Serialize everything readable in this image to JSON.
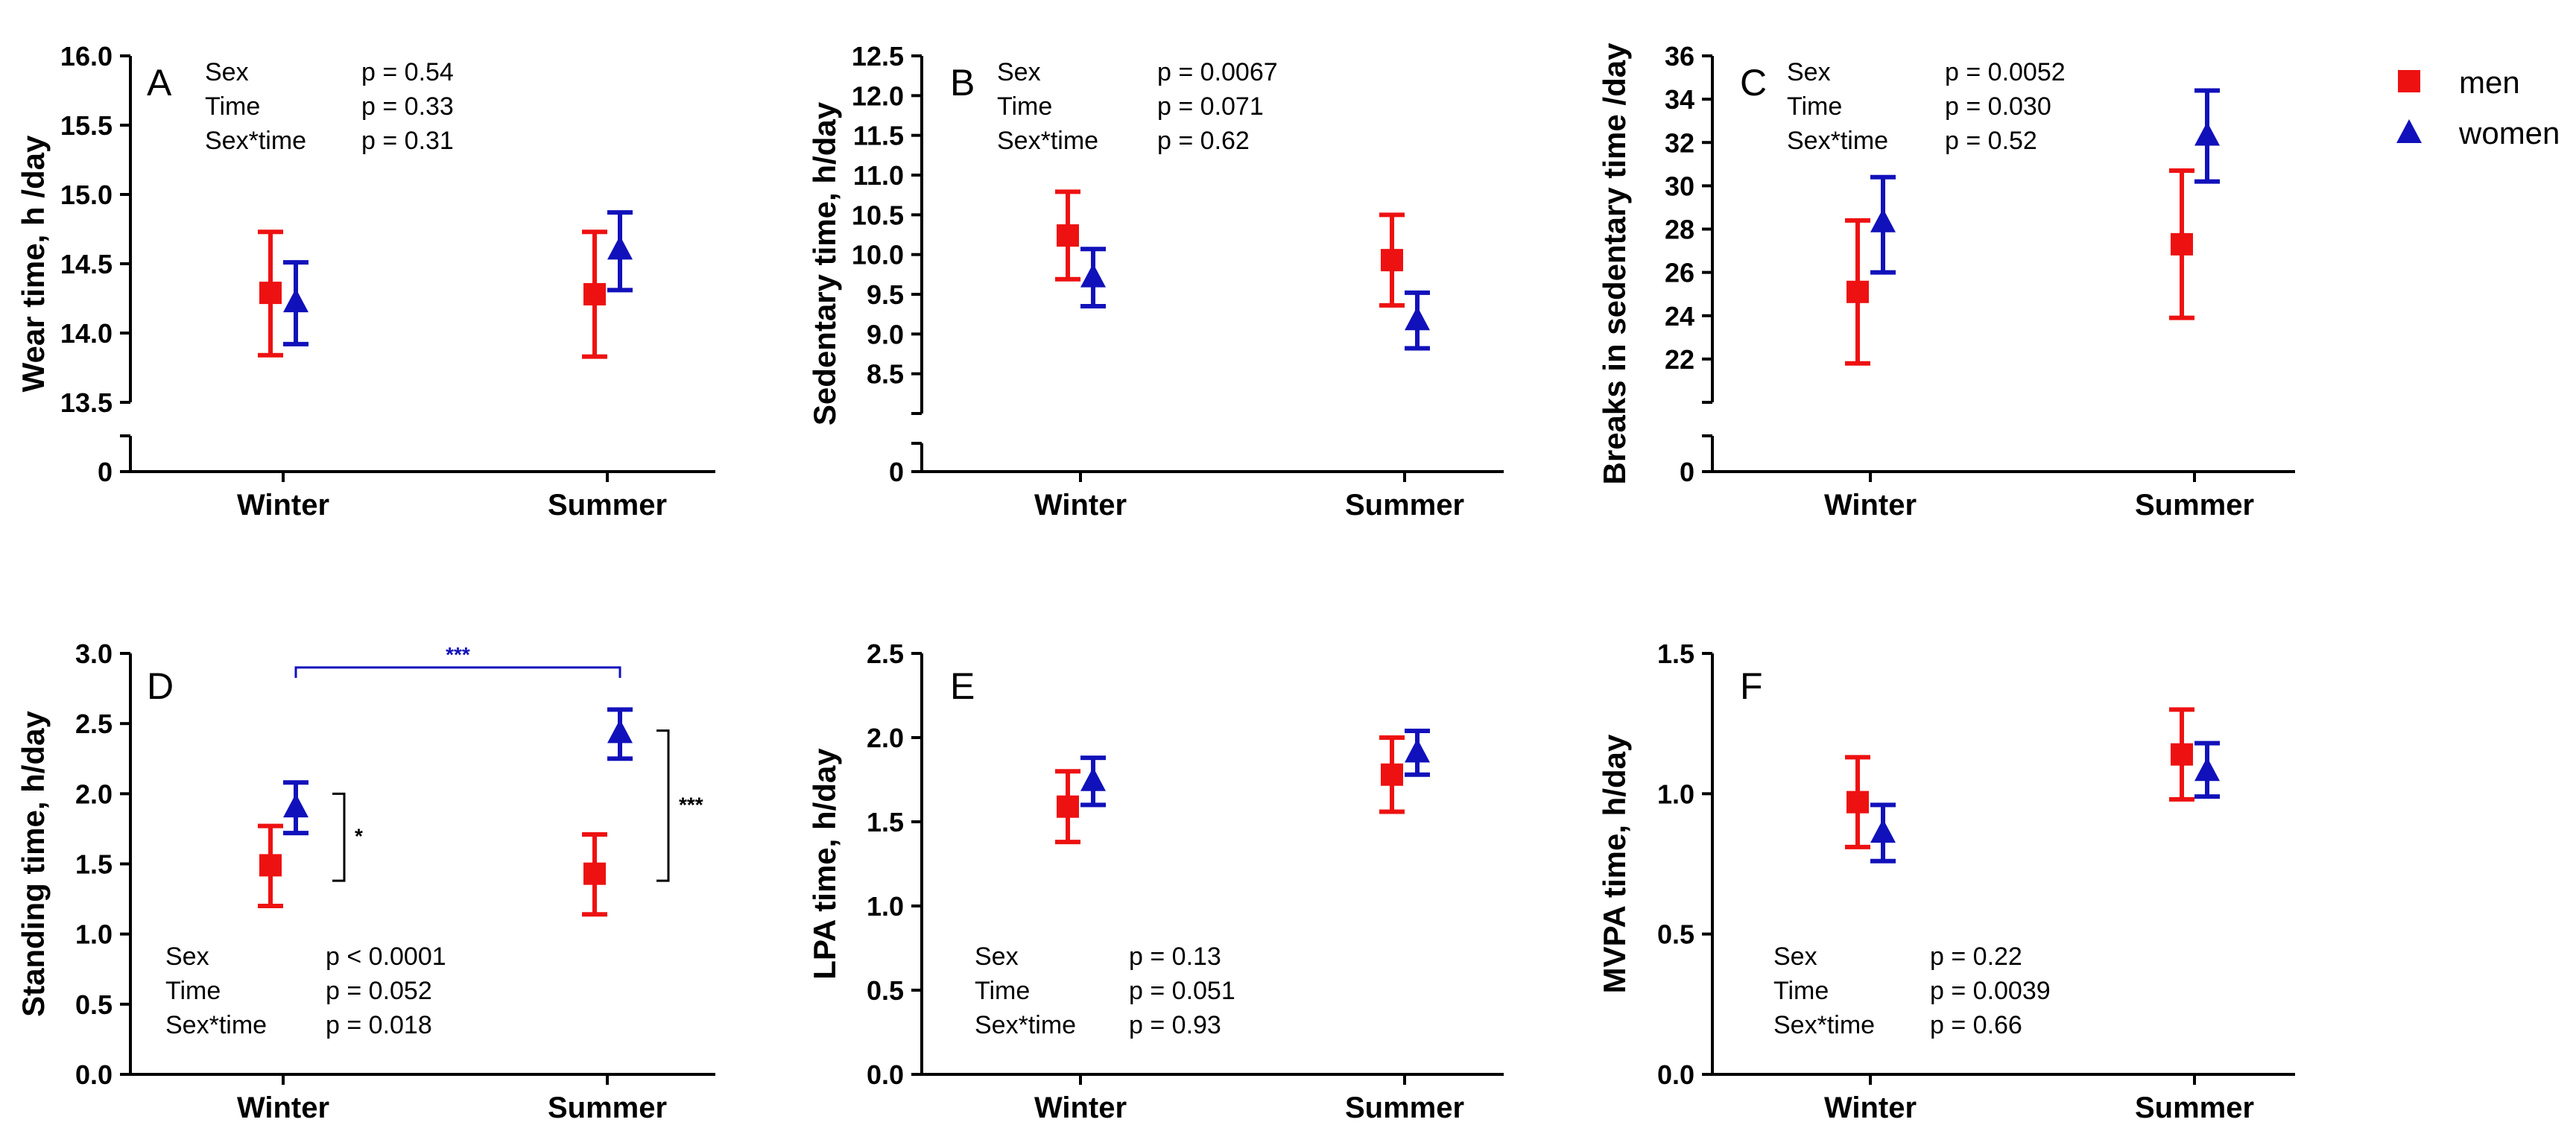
{
  "legend": {
    "items": [
      {
        "name": "men",
        "color": "#ee1111",
        "marker": "square"
      },
      {
        "name": "women",
        "color": "#1111bb",
        "marker": "triangle"
      }
    ]
  },
  "chart_data": [
    {
      "type": "scatter",
      "label": "A",
      "ylabel": "Wear time, h /day",
      "categories": [
        "Winter",
        "Summer"
      ],
      "yticks": [
        "13.5",
        "14.0",
        "14.5",
        "15.0",
        "15.5",
        "16.0"
      ],
      "ytick_values": [
        13.5,
        14.0,
        14.5,
        15.0,
        15.5,
        16.0
      ],
      "ylim": [
        13.5,
        16.0
      ],
      "broken_axis": true,
      "zero_label": "0",
      "series": [
        {
          "name": "men",
          "values": [
            14.29,
            14.28
          ],
          "lower": [
            13.84,
            13.83
          ],
          "upper": [
            14.73,
            14.73
          ]
        },
        {
          "name": "women",
          "values": [
            14.22,
            14.6
          ],
          "lower": [
            13.92,
            14.31
          ],
          "upper": [
            14.51,
            14.87
          ]
        }
      ],
      "stats": [
        {
          "term": "Sex",
          "p": "p = 0.54"
        },
        {
          "term": "Time",
          "p": "p = 0.33"
        },
        {
          "term": "Sex*time",
          "p": "p = 0.31"
        }
      ],
      "stats_position": "top"
    },
    {
      "type": "scatter",
      "label": "B",
      "ylabel": "Sedentary time, h/day",
      "categories": [
        "Winter",
        "Summer"
      ],
      "yticks": [
        "8.5",
        "9.0",
        "9.5",
        "10.0",
        "10.5",
        "11.0",
        "11.5",
        "12.0",
        "12.5"
      ],
      "ytick_values": [
        8.5,
        9.0,
        9.5,
        10.0,
        10.5,
        11.0,
        11.5,
        12.0,
        12.5
      ],
      "ylim": [
        8.0,
        12.5
      ],
      "broken_axis": true,
      "zero_label": "0",
      "series": [
        {
          "name": "men",
          "values": [
            10.24,
            9.93
          ],
          "lower": [
            9.69,
            9.36
          ],
          "upper": [
            10.79,
            10.5
          ]
        },
        {
          "name": "women",
          "values": [
            9.71,
            9.17
          ],
          "lower": [
            9.35,
            8.82
          ],
          "upper": [
            10.07,
            9.52
          ]
        }
      ],
      "stats": [
        {
          "term": "Sex",
          "p": "p = 0.0067"
        },
        {
          "term": "Time",
          "p": "p = 0.071"
        },
        {
          "term": "Sex*time",
          "p": "p = 0.62"
        }
      ],
      "stats_position": "top"
    },
    {
      "type": "scatter",
      "label": "C",
      "ylabel": "Breaks in sedentary  time /day",
      "categories": [
        "Winter",
        "Summer"
      ],
      "yticks": [
        "22",
        "24",
        "26",
        "28",
        "30",
        "32",
        "34",
        "36"
      ],
      "ytick_values": [
        22,
        24,
        26,
        28,
        30,
        32,
        34,
        36
      ],
      "ylim": [
        20,
        36
      ],
      "broken_axis": true,
      "zero_label": "0",
      "series": [
        {
          "name": "men",
          "values": [
            25.1,
            27.3
          ],
          "lower": [
            21.8,
            23.9
          ],
          "upper": [
            28.4,
            30.7
          ]
        },
        {
          "name": "women",
          "values": [
            28.3,
            32.3
          ],
          "lower": [
            26.0,
            30.2
          ],
          "upper": [
            30.4,
            34.4
          ]
        }
      ],
      "stats": [
        {
          "term": "Sex",
          "p": "p = 0.0052"
        },
        {
          "term": "Time",
          "p": "p = 0.030"
        },
        {
          "term": "Sex*time",
          "p": "p = 0.52"
        }
      ],
      "stats_position": "top"
    },
    {
      "type": "scatter",
      "label": "D",
      "ylabel": "Standing time, h/day",
      "categories": [
        "Winter",
        "Summer"
      ],
      "yticks": [
        "0.0",
        "0.5",
        "1.0",
        "1.5",
        "2.0",
        "2.5",
        "3.0"
      ],
      "ytick_values": [
        0,
        0.5,
        1.0,
        1.5,
        2.0,
        2.5,
        3.0
      ],
      "ylim": [
        0,
        3.0
      ],
      "broken_axis": false,
      "series": [
        {
          "name": "men",
          "values": [
            1.49,
            1.43
          ],
          "lower": [
            1.2,
            1.14
          ],
          "upper": [
            1.77,
            1.71
          ]
        },
        {
          "name": "women",
          "values": [
            1.9,
            2.43
          ],
          "lower": [
            1.72,
            2.25
          ],
          "upper": [
            2.08,
            2.6
          ]
        }
      ],
      "stats": [
        {
          "term": "Sex",
          "p": "p < 0.0001"
        },
        {
          "term": "Time",
          "p": "p = 0.052"
        },
        {
          "term": "Sex*time",
          "p": "p = 0.018"
        }
      ],
      "stats_position": "bottom",
      "annotations": [
        {
          "kind": "bracket-top",
          "text": "***",
          "color": "#1111bb",
          "y": 2.9
        },
        {
          "kind": "bracket-side",
          "text": "*",
          "cat": 0,
          "y1": 1.38,
          "y2": 2.0
        },
        {
          "kind": "bracket-side",
          "text": "***",
          "cat": 1,
          "y1": 1.38,
          "y2": 2.45
        }
      ]
    },
    {
      "type": "scatter",
      "label": "E",
      "ylabel": "LPA time, h/day",
      "categories": [
        "Winter",
        "Summer"
      ],
      "yticks": [
        "0.0",
        "0.5",
        "1.0",
        "1.5",
        "2.0",
        "2.5"
      ],
      "ytick_values": [
        0,
        0.5,
        1.0,
        1.5,
        2.0,
        2.5
      ],
      "ylim": [
        0,
        2.5
      ],
      "broken_axis": false,
      "series": [
        {
          "name": "men",
          "values": [
            1.59,
            1.78
          ],
          "lower": [
            1.38,
            1.56
          ],
          "upper": [
            1.8,
            2.0
          ]
        },
        {
          "name": "women",
          "values": [
            1.74,
            1.91
          ],
          "lower": [
            1.6,
            1.78
          ],
          "upper": [
            1.88,
            2.04
          ]
        }
      ],
      "stats": [
        {
          "term": "Sex",
          "p": "p = 0.13"
        },
        {
          "term": "Time",
          "p": "p = 0.051"
        },
        {
          "term": "Sex*time",
          "p": "p = 0.93"
        }
      ],
      "stats_position": "bottom"
    },
    {
      "type": "scatter",
      "label": "F",
      "ylabel": "MVPA time, h/day",
      "categories": [
        "Winter",
        "Summer"
      ],
      "yticks": [
        "0.0",
        "0.5",
        "1.0",
        "1.5"
      ],
      "ytick_values": [
        0,
        0.5,
        1.0,
        1.5
      ],
      "ylim": [
        0,
        1.5
      ],
      "broken_axis": false,
      "series": [
        {
          "name": "men",
          "values": [
            0.97,
            1.14
          ],
          "lower": [
            0.81,
            0.98
          ],
          "upper": [
            1.13,
            1.3
          ]
        },
        {
          "name": "women",
          "values": [
            0.86,
            1.08
          ],
          "lower": [
            0.76,
            0.99
          ],
          "upper": [
            0.96,
            1.18
          ]
        }
      ],
      "stats": [
        {
          "term": "Sex",
          "p": "p = 0.22"
        },
        {
          "term": "Time",
          "p": "p = 0.0039"
        },
        {
          "term": "Sex*time",
          "p": "p = 0.66"
        }
      ],
      "stats_position": "bottom"
    }
  ]
}
